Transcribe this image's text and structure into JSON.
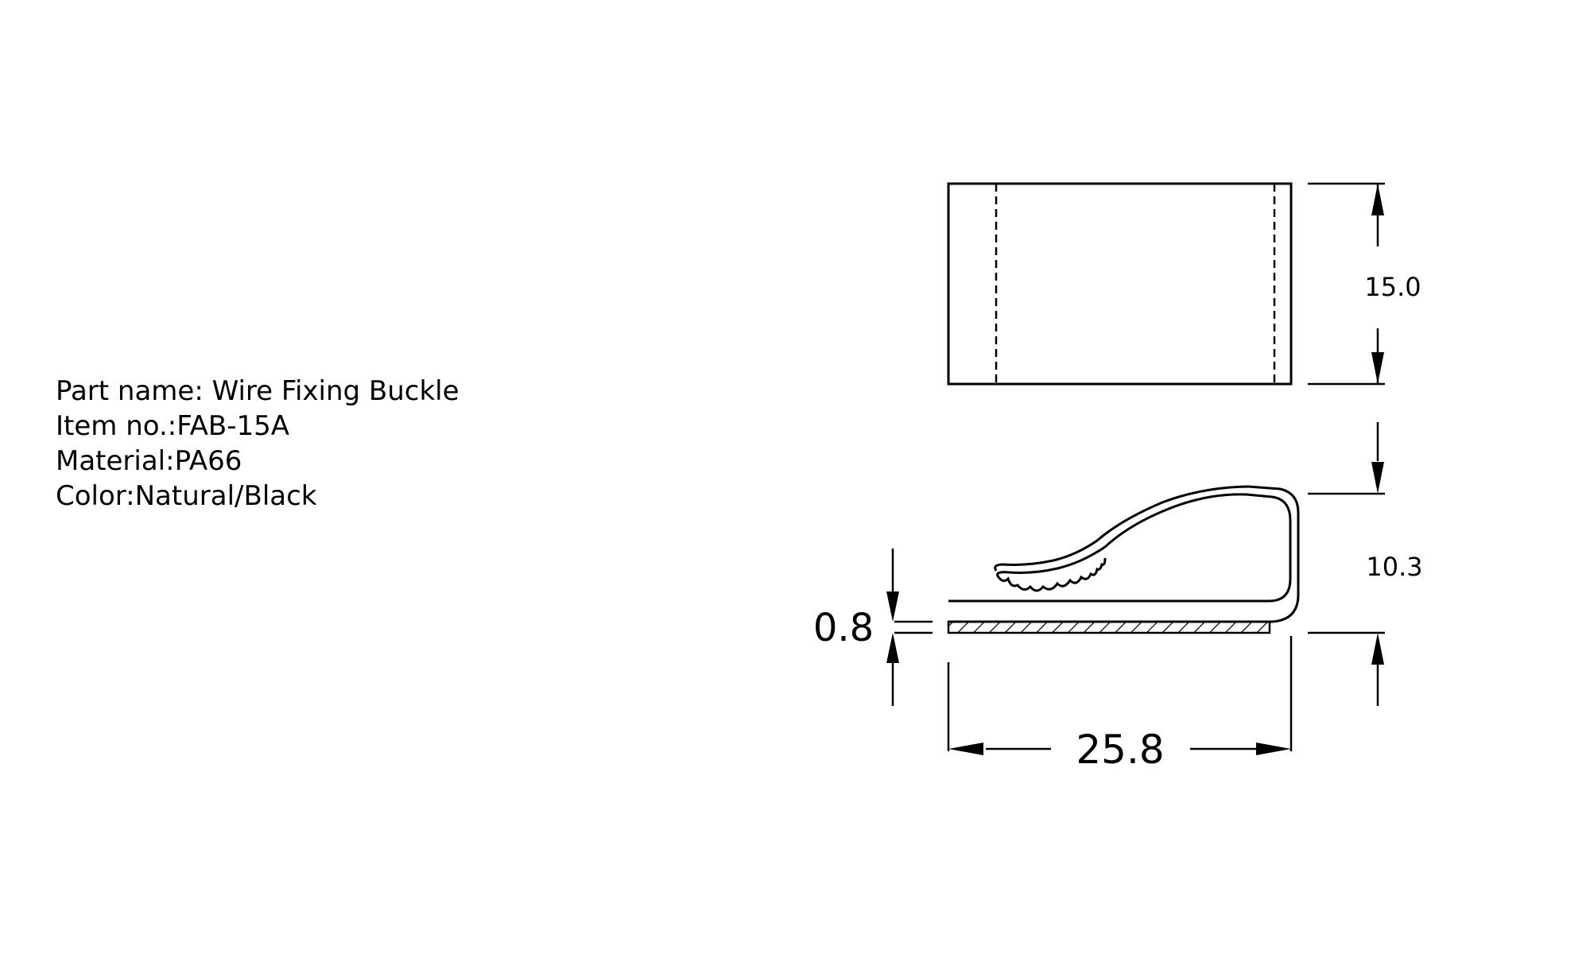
{
  "spec": {
    "part_name": "Part name: Wire Fixing Buckle",
    "item_no": "Item no.:FAB-15A",
    "material": "Material:PA66",
    "color": "Color:Natural/Black"
  },
  "dimensions": {
    "height_top": "15.0",
    "height_side": "10.3",
    "thickness": "0.8",
    "length": "25.8"
  }
}
